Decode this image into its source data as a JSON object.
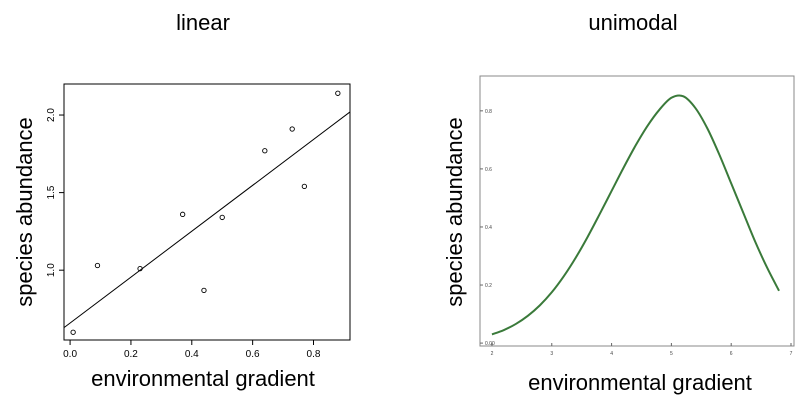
{
  "chart_data": [
    {
      "type": "scatter",
      "title": "linear",
      "xlabel": "environmental gradient",
      "ylabel": "species abundance",
      "xlim": [
        -0.02,
        0.92
      ],
      "ylim": [
        0.55,
        2.2
      ],
      "xticks": [
        0.0,
        0.2,
        0.4,
        0.6,
        0.8
      ],
      "xtick_labels": [
        "0.0",
        "0.2",
        "0.4",
        "0.6",
        "0.8"
      ],
      "yticks": [
        1.0,
        1.5,
        2.0
      ],
      "ytick_labels": [
        "1.0",
        "1.5",
        "2.0"
      ],
      "points": [
        {
          "x": 0.01,
          "y": 0.6
        },
        {
          "x": 0.09,
          "y": 1.03
        },
        {
          "x": 0.23,
          "y": 1.01
        },
        {
          "x": 0.37,
          "y": 1.36
        },
        {
          "x": 0.44,
          "y": 0.87
        },
        {
          "x": 0.5,
          "y": 1.34
        },
        {
          "x": 0.64,
          "y": 1.77
        },
        {
          "x": 0.73,
          "y": 1.91
        },
        {
          "x": 0.77,
          "y": 1.54
        },
        {
          "x": 0.88,
          "y": 2.14
        }
      ],
      "fit_line": {
        "x": [
          -0.02,
          0.92
        ],
        "y": [
          0.63,
          2.02
        ]
      },
      "grid": false
    },
    {
      "type": "line",
      "title": "unimodal",
      "xlabel": "environmental gradient",
      "ylabel": "species abundance",
      "xlim": [
        1.8,
        7.05
      ],
      "ylim": [
        -0.01,
        0.92
      ],
      "xticks": [
        2,
        3,
        4,
        5,
        6,
        7
      ],
      "xtick_labels": [
        "2",
        "3",
        "4",
        "5",
        "6",
        "7"
      ],
      "yticks": [
        0.0,
        0.2,
        0.4,
        0.6,
        0.8
      ],
      "ytick_labels": [
        "0.00",
        "0.2",
        "0.4",
        "0.6",
        "0.8"
      ],
      "series": [
        {
          "color": "#3a7a3a",
          "x": [
            2.0,
            2.2,
            2.4,
            2.6,
            2.8,
            3.0,
            3.2,
            3.4,
            3.6,
            3.8,
            4.0,
            4.2,
            4.4,
            4.6,
            4.8,
            5.0,
            5.2,
            5.4,
            5.6,
            5.8,
            6.0,
            6.2,
            6.4,
            6.6,
            6.8
          ],
          "y": [
            0.03,
            0.045,
            0.066,
            0.094,
            0.13,
            0.175,
            0.23,
            0.294,
            0.366,
            0.444,
            0.524,
            0.604,
            0.68,
            0.748,
            0.804,
            0.845,
            0.85,
            0.81,
            0.74,
            0.65,
            0.55,
            0.45,
            0.35,
            0.26,
            0.18
          ]
        }
      ],
      "grid": false
    }
  ]
}
